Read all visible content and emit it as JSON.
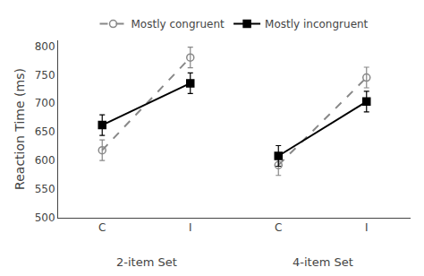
{
  "chart_data": {
    "type": "line",
    "ylabel": "Reaction Time (ms)",
    "categories": [
      "C",
      "I",
      "C",
      "I"
    ],
    "groups": [
      {
        "label": "2-item Set",
        "categories": [
          "C",
          "I"
        ]
      },
      {
        "label": "4-item Set",
        "categories": [
          "C",
          "I"
        ]
      }
    ],
    "series": [
      {
        "name": "Mostly congruent",
        "color": "#888888",
        "marker": "circle-open",
        "line_style": "dash",
        "values": [
          618,
          780,
          592,
          745
        ],
        "errors": [
          18,
          18,
          18,
          18
        ]
      },
      {
        "name": "Mostly incongruent",
        "color": "#000000",
        "marker": "square",
        "line_style": "solid",
        "values": [
          662,
          735,
          608,
          703
        ],
        "errors": [
          18,
          18,
          18,
          18
        ]
      }
    ],
    "ylim": [
      500,
      810
    ],
    "yticks": [
      500,
      550,
      600,
      650,
      700,
      750,
      800
    ],
    "grid": false,
    "legend": "top"
  }
}
